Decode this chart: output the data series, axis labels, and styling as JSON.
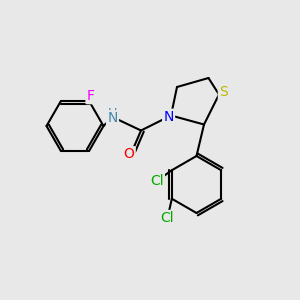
{
  "background_color": "#e8e8e8",
  "bond_color": "#000000",
  "bond_width": 1.5,
  "atom_colors": {
    "F": "#ee00ee",
    "N": "#0000ff",
    "NH": "#4488aa",
    "O": "#ff0000",
    "S": "#bbbb00",
    "Cl": "#00aa00",
    "C": "#000000"
  },
  "font_size": 9,
  "figsize": [
    3.0,
    3.0
  ],
  "dpi": 100
}
